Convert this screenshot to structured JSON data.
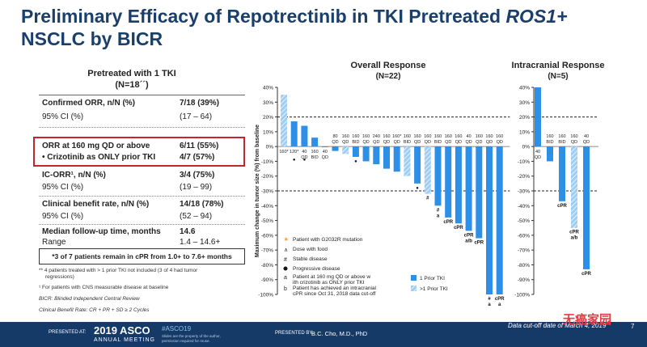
{
  "title_line1": "Preliminary Efficacy of Repotrectinib in TKI Pretreated ",
  "title_ros1": "ROS1+",
  "title_line2": "NSCLC by BICR",
  "left_table": {
    "heading": "Pretreated with 1 TKI",
    "n": "(N=18´´)",
    "rows": [
      {
        "label": "Confirmed ORR, n/N (%)",
        "value": "7/18 (39%)"
      },
      {
        "label": "95% CI (%)",
        "value": "(17 – 64)"
      },
      {
        "label": "ORR at 160 mg QD or above",
        "value": "6/11 (55%)"
      },
      {
        "label": "•  Crizotinib as ONLY prior TKI",
        "value": "4/7 (57%)"
      },
      {
        "label": "IC-ORR¹, n/N (%)",
        "value": "3/4 (75%)"
      },
      {
        "label": "95% CI (%)",
        "value": "(19 – 99)"
      },
      {
        "label": "Clinical benefit rate, n/N (%)",
        "value": "14/18 (78%)"
      },
      {
        "label": "95% CI (%)",
        "value": "(52 – 94)"
      },
      {
        "label": "Median follow-up time, months",
        "value": "14.6"
      },
      {
        "label": "Range",
        "value": "1.4 – 14.6+"
      }
    ],
    "note": "*3 of 7 patients remain in cPR from 1.0+ to 7.6+ months",
    "footnotes": [
      "** 4 patients treated with > 1 prior TKI not included (3 of 4 had tumor",
      "regressions)",
      "¹ For patients with CNS measurable disease at baseline",
      "BICR: Blinded Independent Central Review",
      "Clinical Benefit Rate:  CR + PR + SD ≥ 2 Cycles"
    ]
  },
  "footer": {
    "presented_at": "PRESENTED AT:",
    "meeting_year": "2019 ASCO",
    "meeting_sub": "ANNUAL MEETING",
    "hashtag": "#ASCO19",
    "small1": "Slides are the property of the author,",
    "small2": "permission required for reuse.",
    "presented_by": "PRESENTED BY:",
    "presenter": "B.C. Cho, M.D., PhD",
    "cutoff": "Data cut-off date of March 4, 2019",
    "page": "7",
    "watermark": "无癌家园"
  },
  "colors": {
    "title": "#1b3f6b",
    "bar": "#2e8fe6",
    "hatch": "#9fcdf3",
    "footer": "#163a68",
    "redbox": "#c0272d"
  },
  "chart_data": [
    {
      "type": "bar",
      "title": "Overall Response",
      "subtitle": "(N=22)",
      "ylabel": "Maximum change in tumor size (%) from baseline",
      "ylim": [
        -100,
        40
      ],
      "yticks": [
        40,
        30,
        20,
        10,
        0,
        -10,
        -20,
        -30,
        -40,
        -50,
        -60,
        -70,
        -80,
        -90,
        -100
      ],
      "ytick_labels": [
        "40%",
        "30%",
        "20%",
        "10%",
        "0%",
        "-10%",
        "-20%",
        "-30%",
        "-40%",
        "-50%",
        "-60%",
        "-70%",
        "-80%",
        "-90%",
        "-100%"
      ],
      "reference_lines": [
        20,
        -30
      ],
      "values": [
        35,
        17,
        14,
        6,
        0,
        -3,
        -5,
        -7,
        -10,
        -12,
        -15,
        -17,
        -20,
        -25,
        -32,
        -40,
        -48,
        -52,
        -57,
        -62,
        -100,
        -100
      ],
      "hatched": [
        true,
        false,
        false,
        false,
        false,
        false,
        true,
        false,
        false,
        false,
        false,
        false,
        true,
        false,
        true,
        false,
        false,
        false,
        false,
        false,
        false,
        false
      ],
      "dose_labels": [
        "160*",
        "120*",
        "40 QD",
        "160 BID",
        "40 QD",
        "80 QD",
        "160 QD",
        "160 BID",
        "160 QD",
        "240 QD",
        "160 QD",
        "160* QD",
        "160 BID",
        "160 QD",
        "160 QD",
        "160 BID",
        "160 QD",
        "160 QD",
        "40 QD",
        "160 QD",
        "160 QD",
        "160 QD"
      ],
      "annotations": [
        {
          "bar": 1,
          "text": "●"
        },
        {
          "bar": 2,
          "text": "●"
        },
        {
          "bar": 7,
          "text": "●"
        },
        {
          "bar": 13,
          "text": "●"
        },
        {
          "bar": 14,
          "text": "#"
        },
        {
          "bar": 15,
          "text": "# a"
        },
        {
          "bar": 16,
          "text": "cPR"
        },
        {
          "bar": 17,
          "text": "cPR"
        },
        {
          "bar": 18,
          "text": "cPR a/b"
        },
        {
          "bar": 19,
          "text": "cPR"
        },
        {
          "bar": 20,
          "text": "# a"
        },
        {
          "bar": 21,
          "text": "cPR a"
        }
      ],
      "legend": {
        "g2032r": "Patient with G2032R mutation",
        "food": "Dose with food",
        "sd": "Stable disease",
        "pd": "Progressive disease",
        "a": "Patient at 160 mg QD or above with crizotinib as ONLY prior TKI",
        "b": "Patient has achieved an intracranial cPR since Oct 31, 2018 data cut-off",
        "one_tki": "1 Prior TKI",
        "gt_one_tki": ">1 Prior TKI"
      }
    },
    {
      "type": "bar",
      "title": "Intracranial Response",
      "subtitle": "(N=5)",
      "ylim": [
        -100,
        40
      ],
      "yticks": [
        40,
        30,
        20,
        10,
        0,
        -10,
        -20,
        -30,
        -40,
        -50,
        -60,
        -70,
        -80,
        -90,
        -100
      ],
      "ytick_labels": [
        "40%",
        "30%",
        "20%",
        "10%",
        "0%",
        "-10%",
        "-20%",
        "-30%",
        "-40%",
        "-50%",
        "-60%",
        "-70%",
        "-80%",
        "-90%",
        "-100%"
      ],
      "reference_lines": [
        20,
        -30
      ],
      "values": [
        40,
        -10,
        -37,
        -55,
        -83
      ],
      "hatched": [
        false,
        false,
        false,
        true,
        false
      ],
      "dose_labels": [
        "40 QD",
        "160 BID",
        "160 BID",
        "160 QD",
        "40 QD"
      ],
      "annotations": [
        {
          "bar": 2,
          "text": "cPR"
        },
        {
          "bar": 3,
          "text": "cPR a/b"
        },
        {
          "bar": 4,
          "text": "cPR"
        }
      ]
    }
  ]
}
